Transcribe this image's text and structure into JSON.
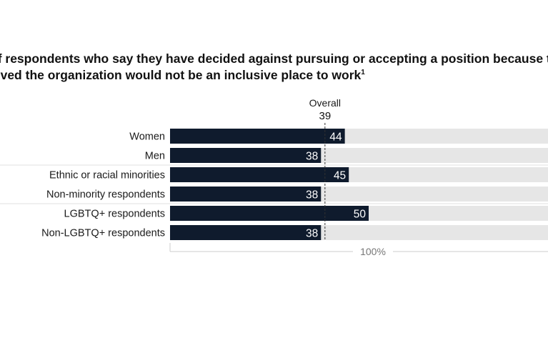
{
  "title": {
    "line1": "of respondents who say they have decided against pursuing or accepting a position because th",
    "line2": "ieved the organization would not be an inclusive place to work",
    "footnote_marker": "1"
  },
  "colors": {
    "bar": "#0f1b2d",
    "track": "#e6e6e6",
    "value_text": "#ffffff",
    "reference_line": "#333333",
    "axis": "#cccccc"
  },
  "chart_data": {
    "type": "bar",
    "orientation": "horizontal",
    "categories": [
      "Women",
      "Men",
      "Ethnic or racial minorities",
      "Non-minority respondents",
      "LGBTQ+ respondents",
      "Non-LGBTQ+ respondents"
    ],
    "values": [
      44,
      38,
      45,
      38,
      50,
      38
    ],
    "unit": "%",
    "xlim": [
      0,
      100
    ],
    "axis_label": "100%",
    "reference": {
      "label": "Overall",
      "value": 39
    },
    "groups": [
      [
        0,
        1
      ],
      [
        2,
        3
      ],
      [
        4,
        5
      ]
    ]
  }
}
